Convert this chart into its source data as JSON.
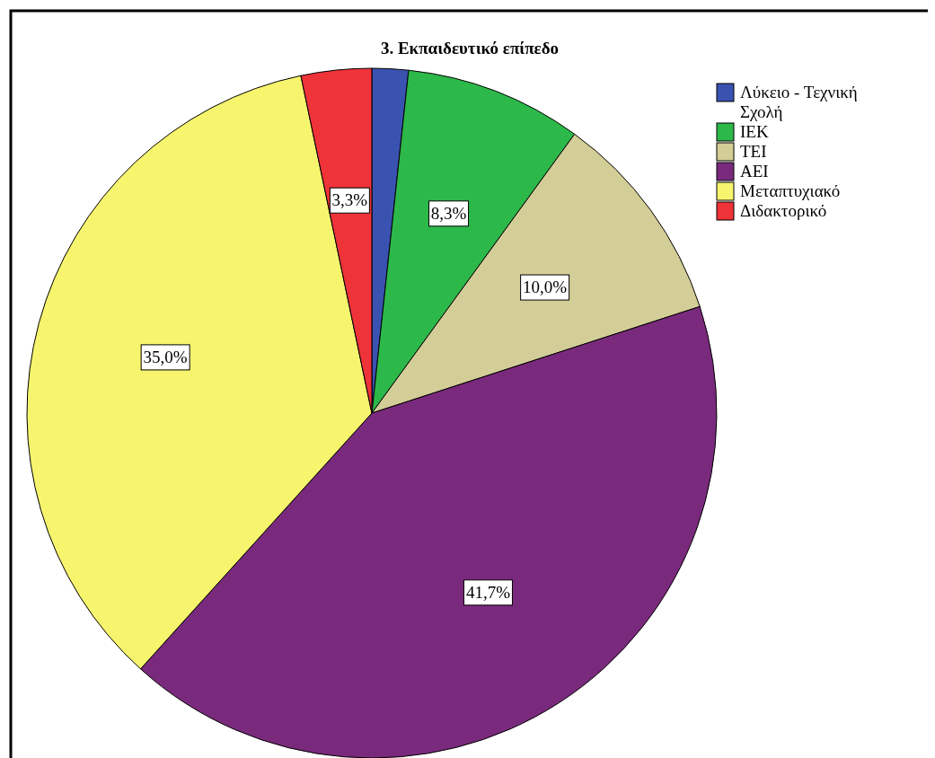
{
  "chart_data": {
    "type": "pie",
    "title": "3. Εκπαιδευτικό επίπεδο",
    "categories": [
      "Λύκειο - Τεχνική Σχολή",
      "ΙΕΚ",
      "ΤΕΙ",
      "ΑΕΙ",
      "Μεταπτυχιακό",
      "Διδακτορικό"
    ],
    "values": [
      1.7,
      8.3,
      10.0,
      41.7,
      35.0,
      3.3
    ],
    "colors": [
      "#3a52b0",
      "#2db84a",
      "#d3cd97",
      "#7a2a7c",
      "#f7f56e",
      "#ee3339"
    ],
    "value_labels": [
      null,
      "8,3%",
      "10,0%",
      "41,7%",
      "35,0%",
      "3,3%"
    ],
    "legend": "top right"
  }
}
